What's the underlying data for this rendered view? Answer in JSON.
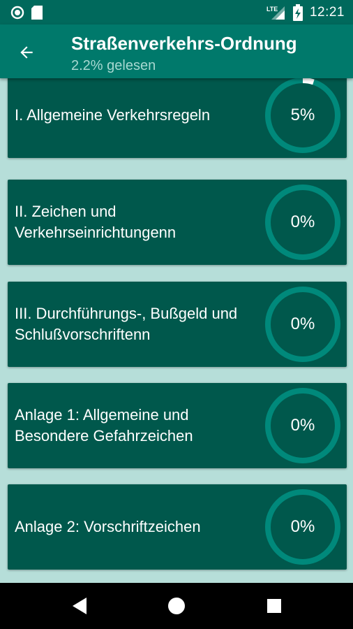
{
  "status_bar": {
    "time": "12:21",
    "network_label": "LTE",
    "icons": [
      "record-icon",
      "sd-card-icon",
      "signal-icon",
      "battery-icon"
    ]
  },
  "header": {
    "title": "Straßenverkehrs-Ordnung",
    "subtitle": "2.2% gelesen",
    "back_icon": "arrow-back-icon"
  },
  "colors": {
    "status_bar": "#00695c",
    "app_bar": "#00796b",
    "background": "#b6ded9",
    "card": "#00584c",
    "ring_track": "#00897b",
    "ring_progress": "#ffffff"
  },
  "chapters": [
    {
      "label": "I. Allgemeine Verkehrsregeln",
      "percent_label": "5%",
      "progress": 0.05
    },
    {
      "label": "II. Zeichen und Verkehrseinrichtungenn",
      "percent_label": "0%",
      "progress": 0
    },
    {
      "label": "III. Durchführungs-, Bußgeld und Schlußvorschriftenn",
      "percent_label": "0%",
      "progress": 0
    },
    {
      "label": "Anlage 1: Allgemeine und Besondere Gefahrzeichen",
      "percent_label": "0%",
      "progress": 0
    },
    {
      "label": "Anlage 2: Vorschriftzeichen",
      "percent_label": "0%",
      "progress": 0
    }
  ],
  "nav_bar": {
    "icons": [
      "back-triangle-icon",
      "home-circle-icon",
      "recents-square-icon"
    ]
  }
}
